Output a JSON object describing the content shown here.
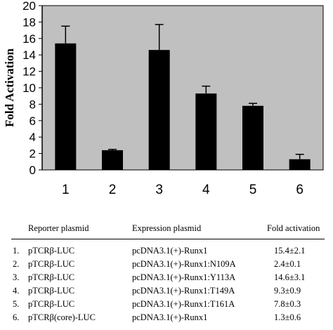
{
  "chart_data": {
    "type": "bar",
    "ylabel": "Fold Activation",
    "xlabel": "",
    "ylim": [
      0,
      20
    ],
    "yticks": [
      0,
      2,
      4,
      6,
      8,
      10,
      12,
      14,
      16,
      18,
      20
    ],
    "categories": [
      "1",
      "2",
      "3",
      "4",
      "5",
      "6"
    ],
    "values": [
      15.4,
      2.4,
      14.6,
      9.3,
      7.8,
      1.3
    ],
    "errors": [
      2.1,
      0.1,
      3.1,
      0.9,
      0.3,
      0.6
    ],
    "colors": {
      "plot_background": "#c0c0c0",
      "bar": "#000000",
      "axis": "#000000"
    },
    "grid": false
  },
  "table": {
    "headers": [
      "Reporter plasmid",
      "Expression plasmid",
      "Fold activation"
    ],
    "rows": [
      {
        "num": "1.",
        "reporter": "pTCRβ-LUC",
        "expression": "pcDNA3.1(+)-Runx1",
        "fold": "15.4±2.1"
      },
      {
        "num": "2.",
        "reporter": "pTCRβ-LUC",
        "expression": "pcDNA3.1(+)-Runx1:N109A",
        "fold": "2.4±0.1"
      },
      {
        "num": "3.",
        "reporter": "pTCRβ-LUC",
        "expression": "pcDNA3.1(+)-Runx1:Y113A",
        "fold": "14.6±3.1"
      },
      {
        "num": "4.",
        "reporter": "pTCRβ-LUC",
        "expression": "pcDNA3.1(+)-Runx1:T149A",
        "fold": "9.3±0.9"
      },
      {
        "num": "5.",
        "reporter": "pTCRβ-LUC",
        "expression": "pcDNA3.1(+)-Runx1:T161A",
        "fold": "7.8±0.3"
      },
      {
        "num": "6.",
        "reporter": "pTCRβ(core)-LUC",
        "expression": "pcDNA3.1(+)-Runx1",
        "fold": "1.3±0.6"
      }
    ]
  }
}
